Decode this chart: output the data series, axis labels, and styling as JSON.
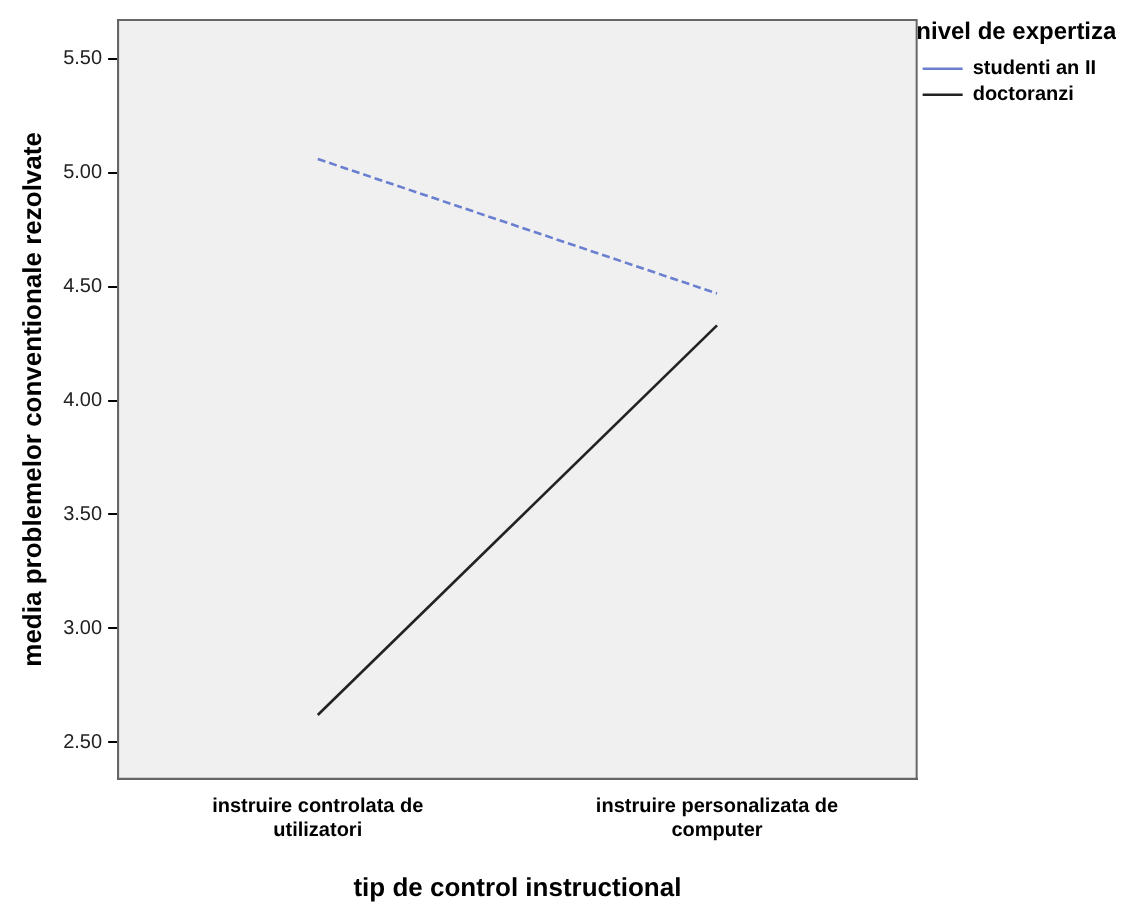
{
  "chart_data": {
    "type": "line",
    "xlabel": "tip de control instructional",
    "ylabel": "media problemelor conventionale rezolvate",
    "legend_title": "nivel de expertiza",
    "categories": [
      "instruire controlata de utilizatori",
      "instruire personalizata de computer"
    ],
    "series": [
      {
        "name": "studenti an II",
        "color": "#6a7fd0",
        "values": [
          5.06,
          4.47
        ],
        "line_style": "dashed"
      },
      {
        "name": "doctoranzi",
        "color": "#222222",
        "values": [
          2.62,
          4.33
        ],
        "line_style": "solid"
      }
    ],
    "ylim": [
      2.34,
      5.67
    ],
    "yticks": [
      {
        "value": 2.5,
        "label": "2.50"
      },
      {
        "value": 3,
        "label": "3.00"
      },
      {
        "value": 3.5,
        "label": "3.50"
      },
      {
        "value": 4,
        "label": "4.00"
      },
      {
        "value": 4.5,
        "label": "4.50"
      },
      {
        "value": 5,
        "label": "5.00"
      },
      {
        "value": 5.5,
        "label": "5.50"
      }
    ],
    "grid": false,
    "legend": "top right",
    "marker": "none"
  }
}
